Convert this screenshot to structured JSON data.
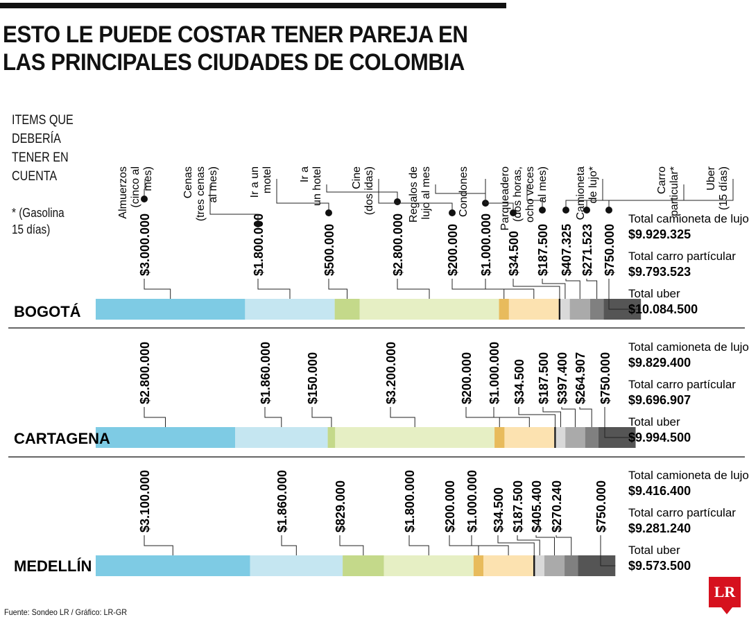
{
  "title": "ESTO LE PUEDE COSTAR TENER PAREJA EN LAS PRINCIPALES CIUDADES DE COLOMBIA",
  "items_label": "ITEMS QUE\nDEBERÍA\nTENER EN\nCUENTA",
  "gas_note": "* (Gasolina\n15 días)",
  "source": "Fuente: Sondeo LR / Gráfico: LR-GR",
  "logo": "LR",
  "chart_data": {
    "type": "bar",
    "stacked": true,
    "orientation": "horizontal",
    "categories": [
      [
        "Almuerzos",
        "(cinco al",
        "mes)"
      ],
      [
        "Cenas",
        "(tres cenas",
        "al mes)"
      ],
      [
        "Ir a un",
        "motel"
      ],
      [
        "Ir a",
        "un hotel"
      ],
      [
        "Cine",
        "(dos idas)"
      ],
      [
        "Regalos de",
        "lujo al mes"
      ],
      [
        "Condones"
      ],
      [
        "Parqueadero",
        "(dos horas,",
        "ocho veces",
        "al mes)"
      ],
      [
        "Camioneta",
        "de lujo*"
      ],
      [
        "Carro",
        "particular*"
      ],
      [
        "Uber",
        "(15 días)"
      ]
    ],
    "colors": [
      "#7ecbe4",
      "#c5e6f1",
      "#c4d98a",
      "#e6efc4",
      "#e8bb5c",
      "#fce2b0",
      "#1a1a1a",
      "#d9d9d9",
      "#aaaaaa",
      "#808080",
      "#555555"
    ],
    "series": [
      {
        "name": "BOGOTÁ",
        "values": [
          3000000,
          1800000,
          500000,
          2800000,
          200000,
          1000000,
          34500,
          187500,
          407325,
          271523,
          750000
        ],
        "labels": [
          "$3.000.000",
          "$1.800.000",
          "$500.000",
          "$2.800.000",
          "$200.000",
          "$1.000.000",
          "$34.500",
          "$187.500",
          "$407.325",
          "$271.523",
          "$750.000"
        ],
        "totals": [
          {
            "label": "Total camioneta de lujo",
            "value": "$9.929.325"
          },
          {
            "label": "Total carro partícular",
            "value": "$9.793.523"
          },
          {
            "label": "Total uber",
            "value": "$10.084.500"
          }
        ]
      },
      {
        "name": "CARTAGENA",
        "values": [
          2800000,
          1860000,
          150000,
          3200000,
          200000,
          1000000,
          34500,
          187500,
          397400,
          264907,
          750000
        ],
        "labels": [
          "$2.800.000",
          "$1.860.000",
          "$150.000",
          "$3.200.000",
          "$200.000",
          "$1.000.000",
          "$34.500",
          "$187.500",
          "$397.400",
          "$264.907",
          "$750.000"
        ],
        "totals": [
          {
            "label": "Total camioneta de lujo",
            "value": "$9.829.400"
          },
          {
            "label": "Total carro partícular",
            "value": "$9.696.907"
          },
          {
            "label": "Total uber",
            "value": "$9.994.500"
          }
        ]
      },
      {
        "name": "MEDELLÍN",
        "values": [
          3100000,
          1860000,
          829000,
          1800000,
          200000,
          1000000,
          34500,
          187500,
          405400,
          270240,
          750000
        ],
        "labels": [
          "$3.100.000",
          "$1.860.000",
          "$829.000",
          "$1.800.000",
          "$200.000",
          "$1.000.000",
          "$34.500",
          "$187.500",
          "$405.400",
          "$270.240",
          "$750.000"
        ],
        "totals": [
          {
            "label": "Total camioneta de lujo",
            "value": "$9.416.400"
          },
          {
            "label": "Total carro partícular",
            "value": "$9.281.240"
          },
          {
            "label": "Total uber",
            "value": "$9.573.500"
          }
        ]
      }
    ]
  }
}
